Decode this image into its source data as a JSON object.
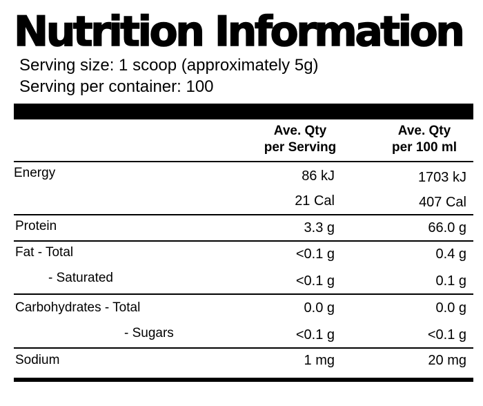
{
  "title": "Nutrition Information",
  "serving_size": "Serving size: 1 scoop (approximately 5g)",
  "servings_per_container": "Serving per container: 100",
  "columns": {
    "per_serving": [
      "Ave. Qty",
      "per Serving"
    ],
    "per_100": [
      "Ave. Qty",
      "per 100 ml"
    ]
  },
  "rows": {
    "energy": {
      "label": "Energy",
      "serving_kj": "86 kJ",
      "per100_kj": "1703 kJ",
      "serving_cal": "21 Cal",
      "per100_cal": "407 Cal"
    },
    "protein": {
      "label": "Protein",
      "serving": "3.3 g",
      "per100": "66.0 g"
    },
    "fat_total": {
      "label": "Fat - Total",
      "serving": "<0.1 g",
      "per100": "0.4 g"
    },
    "saturated": {
      "label": "- Saturated",
      "serving": "<0.1 g",
      "per100": "0.1 g"
    },
    "carbs_total": {
      "label": "Carbohydrates - Total",
      "serving": "0.0 g",
      "per100": "0.0 g"
    },
    "sugars": {
      "label": "- Sugars",
      "serving": "<0.1 g",
      "per100": "<0.1 g"
    },
    "sodium": {
      "label": "Sodium",
      "serving": "1 mg",
      "per100": "20 mg"
    }
  }
}
